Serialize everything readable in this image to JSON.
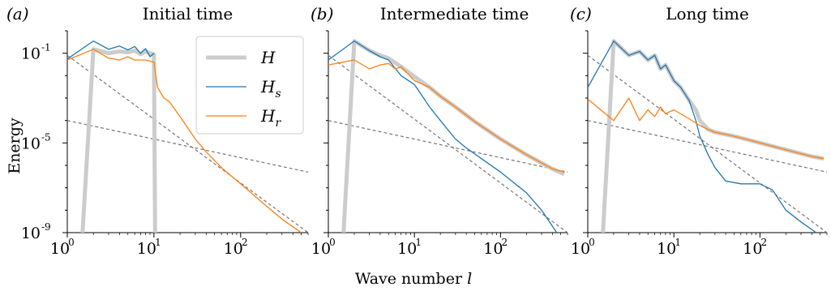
{
  "figure": {
    "xlabel": "Wave number l",
    "ylabel": "Energy"
  },
  "chart_data": [
    {
      "type": "line",
      "panel": "(a)",
      "title": "Initial time",
      "xlabel": "Wave number l",
      "ylabel": "Energy",
      "xscale": "log",
      "yscale": "log",
      "xlim": [
        1,
        600
      ],
      "ylim": [
        1e-09,
        1
      ],
      "xticks": [
        "10^0",
        "10^1",
        "10^2"
      ],
      "yticks": [
        "10^-9",
        "10^-5",
        "10^-1"
      ],
      "legend": {
        "position": "top-right",
        "entries": [
          "H",
          "H_s",
          "H_r"
        ]
      },
      "series": [
        {
          "name": "H",
          "color": "#cccccc",
          "points": [
            [
              1.5,
              1e-09
            ],
            [
              2,
              0.15
            ],
            [
              3,
              0.1
            ],
            [
              4,
              0.12
            ],
            [
              5,
              0.11
            ],
            [
              6,
              0.13
            ],
            [
              7,
              0.09
            ],
            [
              8,
              0.12
            ],
            [
              9,
              0.1
            ],
            [
              10,
              0.09
            ],
            [
              10.3,
              1e-09
            ]
          ]
        },
        {
          "name": "H_s",
          "color": "#1f77b4",
          "points": [
            [
              1,
              0.055
            ],
            [
              2,
              0.35
            ],
            [
              3,
              0.15
            ],
            [
              4,
              0.21
            ],
            [
              5,
              0.14
            ],
            [
              6,
              0.2
            ],
            [
              7,
              0.1
            ],
            [
              8,
              0.16
            ],
            [
              9,
              0.07
            ],
            [
              10,
              0.1
            ]
          ]
        },
        {
          "name": "H_r",
          "color": "#ff7f0e",
          "points": [
            [
              1,
              0.05
            ],
            [
              2,
              0.15
            ],
            [
              3,
              0.06
            ],
            [
              4,
              0.05
            ],
            [
              5,
              0.07
            ],
            [
              6,
              0.05
            ],
            [
              8,
              0.05
            ],
            [
              10,
              0.04
            ],
            [
              11,
              0.003
            ],
            [
              13,
              0.001
            ],
            [
              15,
              0.0007
            ],
            [
              20,
              0.00015
            ],
            [
              30,
              1.5e-05
            ],
            [
              40,
              4e-06
            ],
            [
              60,
              8e-07
            ],
            [
              100,
              1.5e-07
            ],
            [
              200,
              1.5e-08
            ],
            [
              300,
              4e-09
            ],
            [
              500,
              1e-09
            ]
          ]
        }
      ],
      "reference_lines": [
        {
          "points": [
            [
              1,
              0.08
            ],
            [
              600,
              1e-09
            ]
          ]
        },
        {
          "points": [
            [
              1,
              0.0001
            ],
            [
              600,
              5e-07
            ]
          ]
        }
      ]
    },
    {
      "type": "line",
      "panel": "(b)",
      "title": "Intermediate time",
      "xscale": "log",
      "yscale": "log",
      "xlim": [
        1,
        600
      ],
      "ylim": [
        1e-09,
        1
      ],
      "xticks": [
        "10^0",
        "10^1",
        "10^2"
      ],
      "series": [
        {
          "name": "H",
          "color": "#cccccc",
          "points": [
            [
              1.5,
              1e-09
            ],
            [
              2,
              0.35
            ],
            [
              3,
              0.13
            ],
            [
              4,
              0.08
            ],
            [
              5,
              0.06
            ],
            [
              7,
              0.025
            ],
            [
              10,
              0.009
            ],
            [
              15,
              0.003
            ],
            [
              20,
              0.0012
            ],
            [
              30,
              0.0004
            ],
            [
              50,
              9e-05
            ],
            [
              100,
              1.5e-05
            ],
            [
              200,
              3e-06
            ],
            [
              400,
              7e-07
            ],
            [
              550,
              4e-07
            ]
          ]
        },
        {
          "name": "H_s",
          "color": "#1f77b4",
          "points": [
            [
              1,
              0.05
            ],
            [
              2,
              0.35
            ],
            [
              3,
              0.13
            ],
            [
              4,
              0.07
            ],
            [
              5,
              0.05
            ],
            [
              7,
              0.01
            ],
            [
              10,
              0.004
            ],
            [
              15,
              0.0004
            ],
            [
              20,
              0.0001
            ],
            [
              30,
              1.5e-05
            ],
            [
              40,
              6e-06
            ],
            [
              60,
              2e-06
            ],
            [
              100,
              5e-07
            ],
            [
              200,
              6e-08
            ],
            [
              300,
              1e-08
            ],
            [
              450,
              1e-09
            ]
          ]
        },
        {
          "name": "H_r",
          "color": "#ff7f0e",
          "points": [
            [
              1,
              0.03
            ],
            [
              2,
              0.05
            ],
            [
              3,
              0.02
            ],
            [
              4,
              0.03
            ],
            [
              5,
              0.035
            ],
            [
              6,
              0.02
            ],
            [
              7,
              0.025
            ],
            [
              10,
              0.006
            ],
            [
              15,
              0.003
            ],
            [
              20,
              0.0012
            ],
            [
              30,
              0.0004
            ],
            [
              50,
              9e-05
            ],
            [
              100,
              1.5e-05
            ],
            [
              200,
              3e-06
            ],
            [
              400,
              7e-07
            ],
            [
              550,
              5e-07
            ]
          ]
        }
      ],
      "reference_lines": [
        {
          "points": [
            [
              1,
              0.08
            ],
            [
              600,
              1e-09
            ]
          ]
        },
        {
          "points": [
            [
              1,
              0.0001
            ],
            [
              600,
              5e-07
            ]
          ]
        }
      ]
    },
    {
      "type": "line",
      "panel": "(c)",
      "title": "Long time",
      "xscale": "log",
      "yscale": "log",
      "xlim": [
        1,
        600
      ],
      "ylim": [
        1e-09,
        1
      ],
      "xticks": [
        "10^0",
        "10^1",
        "10^2"
      ],
      "series": [
        {
          "name": "H",
          "color": "#cccccc",
          "points": [
            [
              1.5,
              1e-09
            ],
            [
              2,
              0.35
            ],
            [
              3,
              0.08
            ],
            [
              4,
              0.12
            ],
            [
              5,
              0.05
            ],
            [
              6,
              0.08
            ],
            [
              7,
              0.02
            ],
            [
              8,
              0.03
            ],
            [
              10,
              0.006
            ],
            [
              12,
              0.003
            ],
            [
              15,
              0.0008
            ],
            [
              18,
              0.0003
            ],
            [
              20,
              0.0001
            ],
            [
              25,
              4e-05
            ],
            [
              30,
              3e-05
            ],
            [
              50,
              2e-05
            ],
            [
              100,
              1e-05
            ],
            [
              200,
              5e-06
            ],
            [
              400,
              2.5e-06
            ],
            [
              550,
              2e-06
            ]
          ]
        },
        {
          "name": "H_s",
          "color": "#1f77b4",
          "points": [
            [
              1,
              0.003
            ],
            [
              2,
              0.35
            ],
            [
              3,
              0.08
            ],
            [
              4,
              0.12
            ],
            [
              5,
              0.05
            ],
            [
              6,
              0.08
            ],
            [
              7,
              0.02
            ],
            [
              8,
              0.03
            ],
            [
              10,
              0.006
            ],
            [
              12,
              0.003
            ],
            [
              15,
              0.0008
            ],
            [
              18,
              0.0001
            ],
            [
              20,
              2e-05
            ],
            [
              25,
              3e-06
            ],
            [
              30,
              8e-07
            ],
            [
              40,
              2e-07
            ],
            [
              60,
              1.5e-07
            ],
            [
              100,
              1.5e-07
            ],
            [
              140,
              8e-08
            ],
            [
              200,
              1e-08
            ],
            [
              300,
              3e-09
            ],
            [
              450,
              1e-09
            ]
          ]
        },
        {
          "name": "H_r",
          "color": "#ff7f0e",
          "points": [
            [
              1,
              0.0009
            ],
            [
              2,
              0.0001
            ],
            [
              3,
              0.001
            ],
            [
              4,
              0.0001
            ],
            [
              5,
              0.0003
            ],
            [
              6,
              0.00015
            ],
            [
              7,
              0.0004
            ],
            [
              8,
              0.0002
            ],
            [
              10,
              0.0003
            ],
            [
              15,
              0.00012
            ],
            [
              20,
              6e-05
            ],
            [
              25,
              4e-05
            ],
            [
              30,
              3e-05
            ],
            [
              50,
              2e-05
            ],
            [
              100,
              1e-05
            ],
            [
              200,
              5e-06
            ],
            [
              400,
              2.5e-06
            ],
            [
              550,
              2e-06
            ]
          ]
        }
      ],
      "reference_lines": [
        {
          "points": [
            [
              1,
              0.08
            ],
            [
              600,
              1e-09
            ]
          ]
        },
        {
          "points": [
            [
              1,
              0.0001
            ],
            [
              600,
              5e-07
            ]
          ]
        }
      ]
    }
  ]
}
